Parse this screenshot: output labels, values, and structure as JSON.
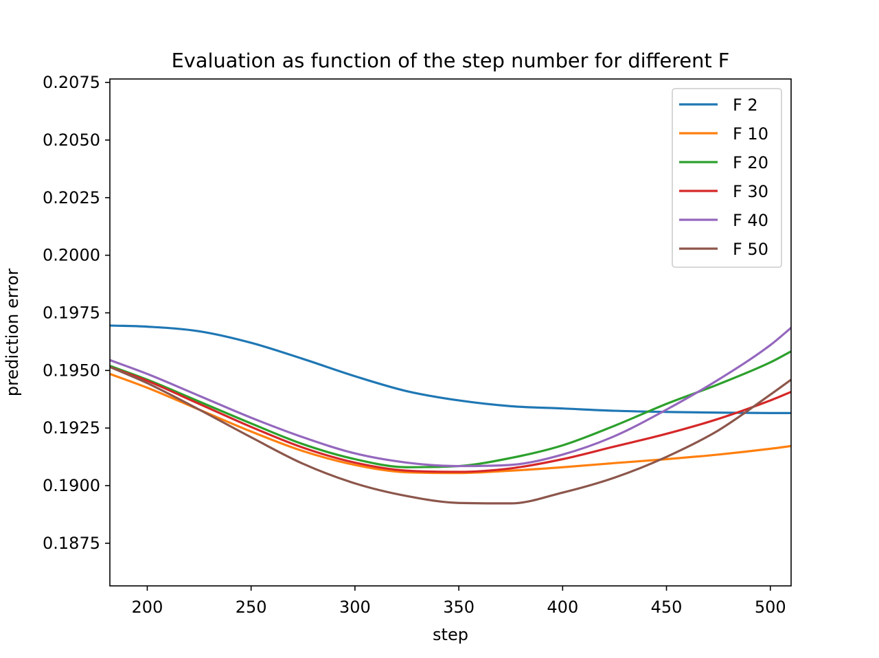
{
  "chart_data": {
    "type": "line",
    "title": "Evaluation as function of the step number for different F",
    "xlabel": "step",
    "ylabel": "prediction error",
    "xlim": [
      182,
      510
    ],
    "ylim": [
      0.18565,
      0.20765
    ],
    "xticks": [
      200,
      250,
      300,
      350,
      400,
      450,
      500
    ],
    "yticks": [
      0.1875,
      0.19,
      0.1925,
      0.195,
      0.1975,
      0.2,
      0.2025,
      0.205,
      0.2075
    ],
    "xtick_labels": [
      "200",
      "250",
      "300",
      "350",
      "400",
      "450",
      "500"
    ],
    "ytick_labels": [
      "0.1875",
      "0.1900",
      "0.1925",
      "0.1950",
      "0.1975",
      "0.2000",
      "0.2025",
      "0.2050",
      "0.2075"
    ],
    "grid": false,
    "legend_position": "top-right",
    "x": [
      182,
      200,
      225,
      250,
      275,
      300,
      325,
      350,
      375,
      400,
      425,
      450,
      475,
      500,
      510
    ],
    "series": [
      {
        "name": "F 2",
        "color": "#1f77b4",
        "values": [
          0.19695,
          0.1969,
          0.1967,
          0.1962,
          0.1955,
          0.19475,
          0.1941,
          0.1937,
          0.19345,
          0.19335,
          0.19325,
          0.1932,
          0.19317,
          0.19315,
          0.19315
        ]
      },
      {
        "name": "F 10",
        "color": "#ff7f0e",
        "values": [
          0.19485,
          0.19425,
          0.1933,
          0.19235,
          0.1915,
          0.1909,
          0.19058,
          0.19055,
          0.19065,
          0.1908,
          0.19098,
          0.19115,
          0.19135,
          0.1916,
          0.19172
        ]
      },
      {
        "name": "F 20",
        "color": "#2ca02c",
        "values": [
          0.1952,
          0.1946,
          0.19365,
          0.1927,
          0.1918,
          0.19115,
          0.1908,
          0.19085,
          0.1912,
          0.19175,
          0.1926,
          0.19355,
          0.1944,
          0.19535,
          0.19583
        ]
      },
      {
        "name": "F 30",
        "color": "#d62728",
        "values": [
          0.19515,
          0.19455,
          0.19355,
          0.19255,
          0.19165,
          0.191,
          0.19065,
          0.1906,
          0.19075,
          0.19115,
          0.1917,
          0.19225,
          0.1929,
          0.1937,
          0.19407
        ]
      },
      {
        "name": "F 40",
        "color": "#9467bd",
        "values": [
          0.19545,
          0.19485,
          0.1939,
          0.19295,
          0.1921,
          0.1914,
          0.191,
          0.19085,
          0.1909,
          0.19135,
          0.19215,
          0.1933,
          0.1946,
          0.1961,
          0.19685
        ]
      },
      {
        "name": "F 50",
        "color": "#8c564b",
        "values": [
          0.19515,
          0.19445,
          0.1933,
          0.1921,
          0.19095,
          0.1901,
          0.18955,
          0.18925,
          0.18923,
          0.1897,
          0.19035,
          0.19125,
          0.1924,
          0.19395,
          0.1946
        ]
      }
    ]
  }
}
